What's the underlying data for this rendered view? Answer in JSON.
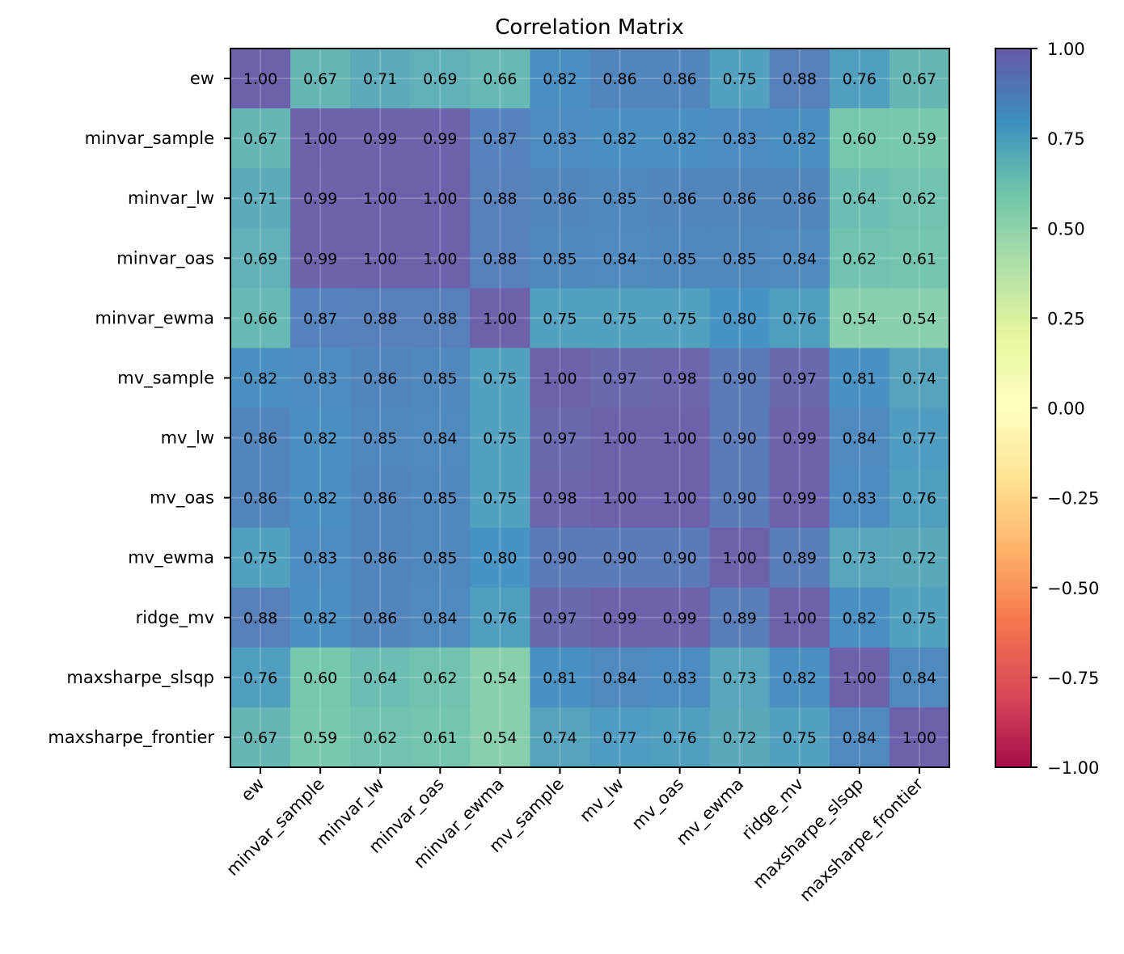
{
  "chart_data": {
    "type": "heatmap",
    "title": "Correlation Matrix",
    "xlabel": "",
    "ylabel": "",
    "colormap": "Spectral",
    "vmin": -1.0,
    "vmax": 1.0,
    "grid": true,
    "labels": [
      "ew",
      "minvar_sample",
      "minvar_lw",
      "minvar_oas",
      "minvar_ewma",
      "mv_sample",
      "mv_lw",
      "mv_oas",
      "mv_ewma",
      "ridge_mv",
      "maxsharpe_slsqp",
      "maxsharpe_frontier"
    ],
    "values": [
      [
        1.0,
        0.67,
        0.71,
        0.69,
        0.66,
        0.82,
        0.86,
        0.86,
        0.75,
        0.88,
        0.76,
        0.67
      ],
      [
        0.67,
        1.0,
        0.99,
        0.99,
        0.87,
        0.83,
        0.82,
        0.82,
        0.83,
        0.82,
        0.6,
        0.59
      ],
      [
        0.71,
        0.99,
        1.0,
        1.0,
        0.88,
        0.86,
        0.85,
        0.86,
        0.86,
        0.86,
        0.64,
        0.62
      ],
      [
        0.69,
        0.99,
        1.0,
        1.0,
        0.88,
        0.85,
        0.84,
        0.85,
        0.85,
        0.84,
        0.62,
        0.61
      ],
      [
        0.66,
        0.87,
        0.88,
        0.88,
        1.0,
        0.75,
        0.75,
        0.75,
        0.8,
        0.76,
        0.54,
        0.54
      ],
      [
        0.82,
        0.83,
        0.86,
        0.85,
        0.75,
        1.0,
        0.97,
        0.98,
        0.9,
        0.97,
        0.81,
        0.74
      ],
      [
        0.86,
        0.82,
        0.85,
        0.84,
        0.75,
        0.97,
        1.0,
        1.0,
        0.9,
        0.99,
        0.84,
        0.77
      ],
      [
        0.86,
        0.82,
        0.86,
        0.85,
        0.75,
        0.98,
        1.0,
        1.0,
        0.9,
        0.99,
        0.83,
        0.76
      ],
      [
        0.75,
        0.83,
        0.86,
        0.85,
        0.8,
        0.9,
        0.9,
        0.9,
        1.0,
        0.89,
        0.73,
        0.72
      ],
      [
        0.88,
        0.82,
        0.86,
        0.84,
        0.76,
        0.97,
        0.99,
        0.99,
        0.89,
        1.0,
        0.82,
        0.75
      ],
      [
        0.76,
        0.6,
        0.64,
        0.62,
        0.54,
        0.81,
        0.84,
        0.83,
        0.73,
        0.82,
        1.0,
        0.84
      ],
      [
        0.67,
        0.59,
        0.62,
        0.61,
        0.54,
        0.74,
        0.77,
        0.76,
        0.72,
        0.75,
        0.84,
        1.0
      ]
    ],
    "colorbar": {
      "ticks": [
        1.0,
        0.75,
        0.5,
        0.25,
        0.0,
        -0.25,
        -0.5,
        -0.75,
        -1.0
      ],
      "tick_labels": [
        "1.00",
        "0.75",
        "0.50",
        "0.25",
        "0.00",
        "−0.25",
        "−0.50",
        "−0.75",
        "−1.00"
      ],
      "placement": "right"
    }
  }
}
